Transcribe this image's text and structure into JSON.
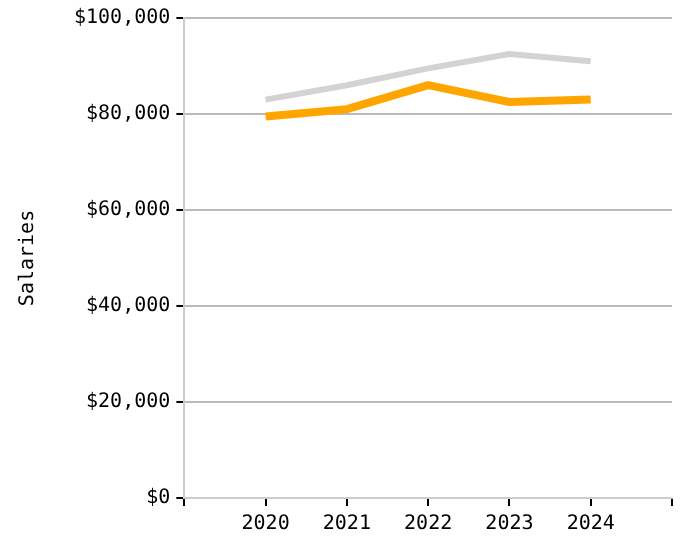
{
  "chart_data": {
    "type": "line",
    "ylabel": "Salaries",
    "x": [
      2020,
      2021,
      2022,
      2023,
      2024
    ],
    "series": [
      {
        "color": "#d3d3d3",
        "values": [
          83000,
          86000,
          89500,
          92500,
          91000
        ]
      },
      {
        "color": "#ffa500",
        "values": [
          79500,
          81000,
          86000,
          82500,
          83000
        ]
      }
    ],
    "xlim": [
      2019,
      2025
    ],
    "xticks": [
      {
        "value": 2019,
        "label": null
      },
      2020,
      2021,
      2022,
      2023,
      2024,
      {
        "value": 2025,
        "label": null
      }
    ],
    "ylim": [
      0,
      100000
    ],
    "yticks": [
      {
        "value": 0,
        "label": "$0"
      },
      {
        "value": 20000,
        "label": "$20,000"
      },
      {
        "value": 40000,
        "label": "$40,000"
      },
      {
        "value": 60000,
        "label": "$60,000"
      },
      {
        "value": 80000,
        "label": "$80,000"
      },
      {
        "value": 100000,
        "label": "$100,000"
      }
    ],
    "grid": "y",
    "legend": false,
    "marker": "none",
    "line_style": "solid"
  }
}
